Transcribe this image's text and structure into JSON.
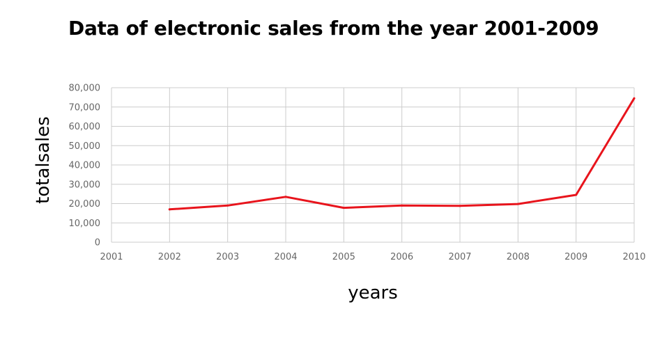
{
  "chart_data": {
    "type": "line",
    "title": "Data of electronic sales from the year 2001-2009",
    "xlabel": "years",
    "ylabel": "totalsales",
    "x_ticks": [
      "2001",
      "2002",
      "2003",
      "2004",
      "2005",
      "2006",
      "2007",
      "2008",
      "2009",
      "2010"
    ],
    "y_ticks": [
      "0",
      "10,000",
      "20,000",
      "30,000",
      "40,000",
      "50,000",
      "60,000",
      "70,000",
      "80,000"
    ],
    "xlim": [
      2001,
      2010
    ],
    "ylim": [
      0,
      80000
    ],
    "grid": true,
    "legend": "none",
    "series": [
      {
        "color": "#e8141c",
        "x": [
          2002,
          2003,
          2004,
          2005,
          2006,
          2007,
          2008,
          2009,
          2010
        ],
        "values": [
          17000,
          19000,
          23500,
          17800,
          19000,
          18800,
          19800,
          24500,
          74500
        ]
      }
    ]
  }
}
